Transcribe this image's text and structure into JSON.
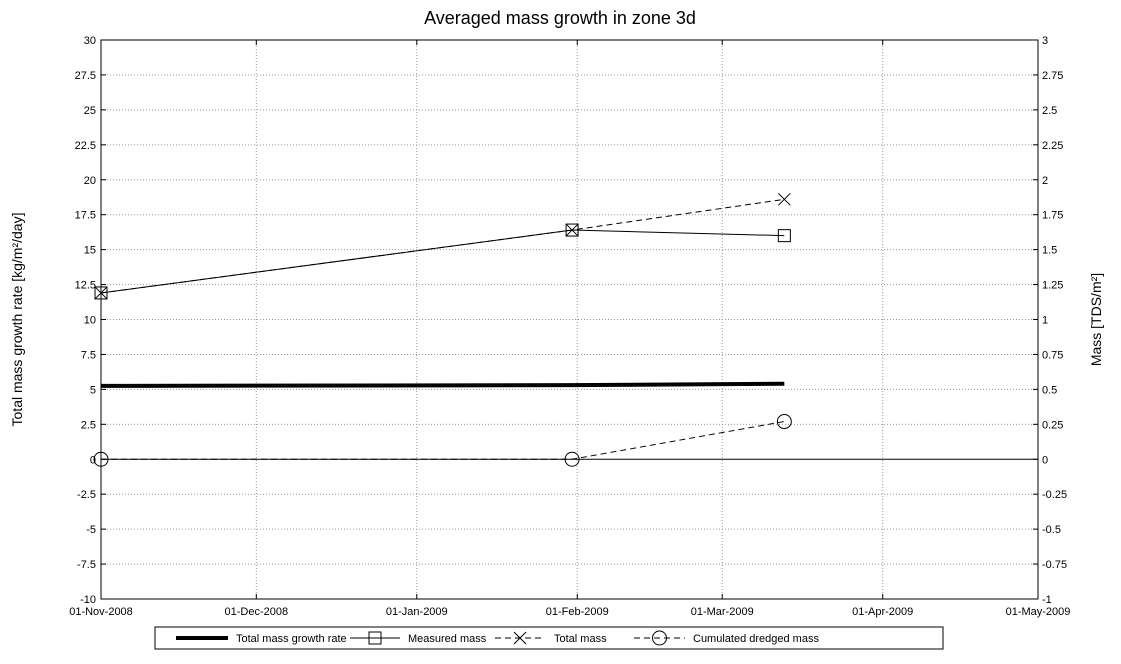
{
  "chart_data": {
    "type": "line",
    "title": "Averaged mass growth in zone 3d",
    "ylabel": "Total mass growth rate [kg/m²/day]",
    "y2label": "Mass [TDS/m²]",
    "xlim": [
      "2008-11-01",
      "2009-05-01"
    ],
    "ylim": [
      -10,
      30
    ],
    "y2lim": [
      -1,
      3
    ],
    "grid": true,
    "legend_position": "bottom",
    "x_ticks": [
      "01-Nov-2008",
      "01-Dec-2008",
      "01-Jan-2009",
      "01-Feb-2009",
      "01-Mar-2009",
      "01-Apr-2009",
      "01-May-2009"
    ],
    "x_tick_dates": [
      "2008-11-01",
      "2008-12-01",
      "2009-01-01",
      "2009-02-01",
      "2009-03-01",
      "2009-04-01",
      "2009-05-01"
    ],
    "y_ticks": [
      "30",
      "27.5",
      "25",
      "22.5",
      "20",
      "17.5",
      "15",
      "12.5",
      "10",
      "7.5",
      "5",
      "2.5",
      "0",
      "-2.5",
      "-5",
      "-7.5",
      "-10"
    ],
    "y_tick_values": [
      30,
      27.5,
      25,
      22.5,
      20,
      17.5,
      15,
      12.5,
      10,
      7.5,
      5,
      2.5,
      0,
      -2.5,
      -5,
      -7.5,
      -10
    ],
    "y2_ticks": [
      "3",
      "2.75",
      "2.5",
      "2.25",
      "2",
      "1.75",
      "1.5",
      "1.25",
      "1",
      "0.75",
      "0.5",
      "0.25",
      "0",
      "-0.25",
      "-0.5",
      "-0.75",
      "-1"
    ],
    "y2_tick_values": [
      3,
      2.75,
      2.5,
      2.25,
      2,
      1.75,
      1.5,
      1.25,
      1,
      0.75,
      0.5,
      0.25,
      0,
      -0.25,
      -0.5,
      -0.75,
      -1
    ],
    "series": [
      {
        "name": "Total mass growth rate",
        "axis": "left",
        "style": "thick-solid",
        "marker": "none",
        "x": [
          "2008-11-01",
          "2009-01-31",
          "2009-03-13"
        ],
        "y": [
          5.25,
          5.3,
          5.4
        ]
      },
      {
        "name": "Measured mass",
        "axis": "right",
        "style": "solid",
        "marker": "square",
        "x": [
          "2008-11-01",
          "2009-01-31",
          "2009-03-13"
        ],
        "y": [
          1.19,
          1.64,
          1.6
        ]
      },
      {
        "name": "Total mass",
        "axis": "right",
        "style": "dashed",
        "marker": "x",
        "x": [
          "2008-11-01",
          "2009-01-31",
          "2009-03-13"
        ],
        "y": [
          1.19,
          1.64,
          1.86
        ]
      },
      {
        "name": "Cumulated dredged mass",
        "axis": "right",
        "style": "dashed",
        "marker": "circle",
        "x": [
          "2008-11-01",
          "2009-01-31",
          "2009-03-13"
        ],
        "y": [
          0,
          0,
          0.27
        ]
      }
    ]
  },
  "colors": {
    "line": "#000000",
    "grid": "#9a9a9a",
    "background": "#ffffff"
  }
}
